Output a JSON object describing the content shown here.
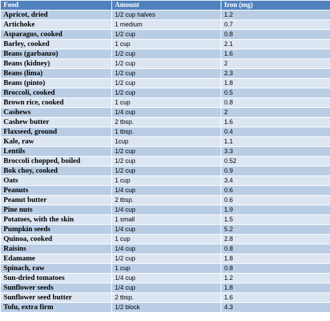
{
  "table": {
    "headers": [
      "Food",
      "Amount",
      "Iron (mg)"
    ],
    "rows": [
      {
        "food": "Apricot, dried",
        "amount": "1/2 cup halves",
        "iron": "1.2"
      },
      {
        "food": "Artichoke",
        "amount": "1 medium",
        "iron": "0.7"
      },
      {
        "food": "Asparagus, cooked",
        "amount": "1/2 cup",
        "iron": "0.8"
      },
      {
        "food": "Barley, cooked",
        "amount": "1 cup",
        "iron": "2.1"
      },
      {
        "food": "Beans (garbanzo)",
        "amount": "1/2 cup",
        "iron": "1.6"
      },
      {
        "food": "Beans (kidney)",
        "amount": "1/2 cup",
        "iron": "2"
      },
      {
        "food": "Beans (lima)",
        "amount": "1/2 cup",
        "iron": "2.3"
      },
      {
        "food": "Beans (pinto)",
        "amount": "1/2 cup",
        "iron": "1.8"
      },
      {
        "food": "Broccoli, cooked",
        "amount": "1/2 cup",
        "iron": "0.5"
      },
      {
        "food": "Brown rice, cooked",
        "amount": "1 cup",
        "iron": "0.8"
      },
      {
        "food": "Cashews",
        "amount": "1/4 cup",
        "iron": "2"
      },
      {
        "food": "Cashew butter",
        "amount": "2 tbsp.",
        "iron": "1.6"
      },
      {
        "food": "Flaxseed, ground",
        "amount": "1 tbsp.",
        "iron": "0.4"
      },
      {
        "food": "Kale, raw",
        "amount": "1cup",
        "iron": "1.1"
      },
      {
        "food": "Lentils",
        "amount": "1/2 cup",
        "iron": "3.3"
      },
      {
        "food": "Broccoli chopped, boiled",
        "amount": "1/2 cup",
        "iron": "0.52"
      },
      {
        "food": "Bok choy, cooked",
        "amount": "1/2 cup",
        "iron": "0.9"
      },
      {
        "food": "Oats",
        "amount": "1 cup",
        "iron": "3.4"
      },
      {
        "food": "Peanuts",
        "amount": "1/4 cup",
        "iron": "0.6"
      },
      {
        "food": "Peanut butter",
        "amount": "2 tbsp.",
        "iron": "0.6"
      },
      {
        "food": "Pine nuts",
        "amount": "1/4 cup",
        "iron": "1.9"
      },
      {
        "food": "Potatoes, with the skin",
        "amount": "1 small",
        "iron": "1.5"
      },
      {
        "food": "Pumpkin seeds",
        "amount": "1/4 cup",
        "iron": "5.2"
      },
      {
        "food": "Quinoa, cooked",
        "amount": "1 cup",
        "iron": "2.8"
      },
      {
        "food": "Raisins",
        "amount": "1/4 cup",
        "iron": "0.8"
      },
      {
        "food": "Edamame",
        "amount": "1/2 cup",
        "iron": "1.8"
      },
      {
        "food": "Spinach, raw",
        "amount": "1 cup",
        "iron": "0.8"
      },
      {
        "food": "Sun-dried tomatoes",
        "amount": "1/4 cup",
        "iron": "1.2"
      },
      {
        "food": "Sunflower seeds",
        "amount": "1/4 cup",
        "iron": "1.8"
      },
      {
        "food": "Sunflower seed butter",
        "amount": "2 tbsp.",
        "iron": "1.6"
      },
      {
        "food": "Tofu, extra firm",
        "amount": "1/2 block",
        "iron": "4.3"
      }
    ]
  },
  "colors": {
    "header_bg": "#4f81bd",
    "row_dark": "#b9cde5",
    "row_light": "#dce6f2"
  }
}
